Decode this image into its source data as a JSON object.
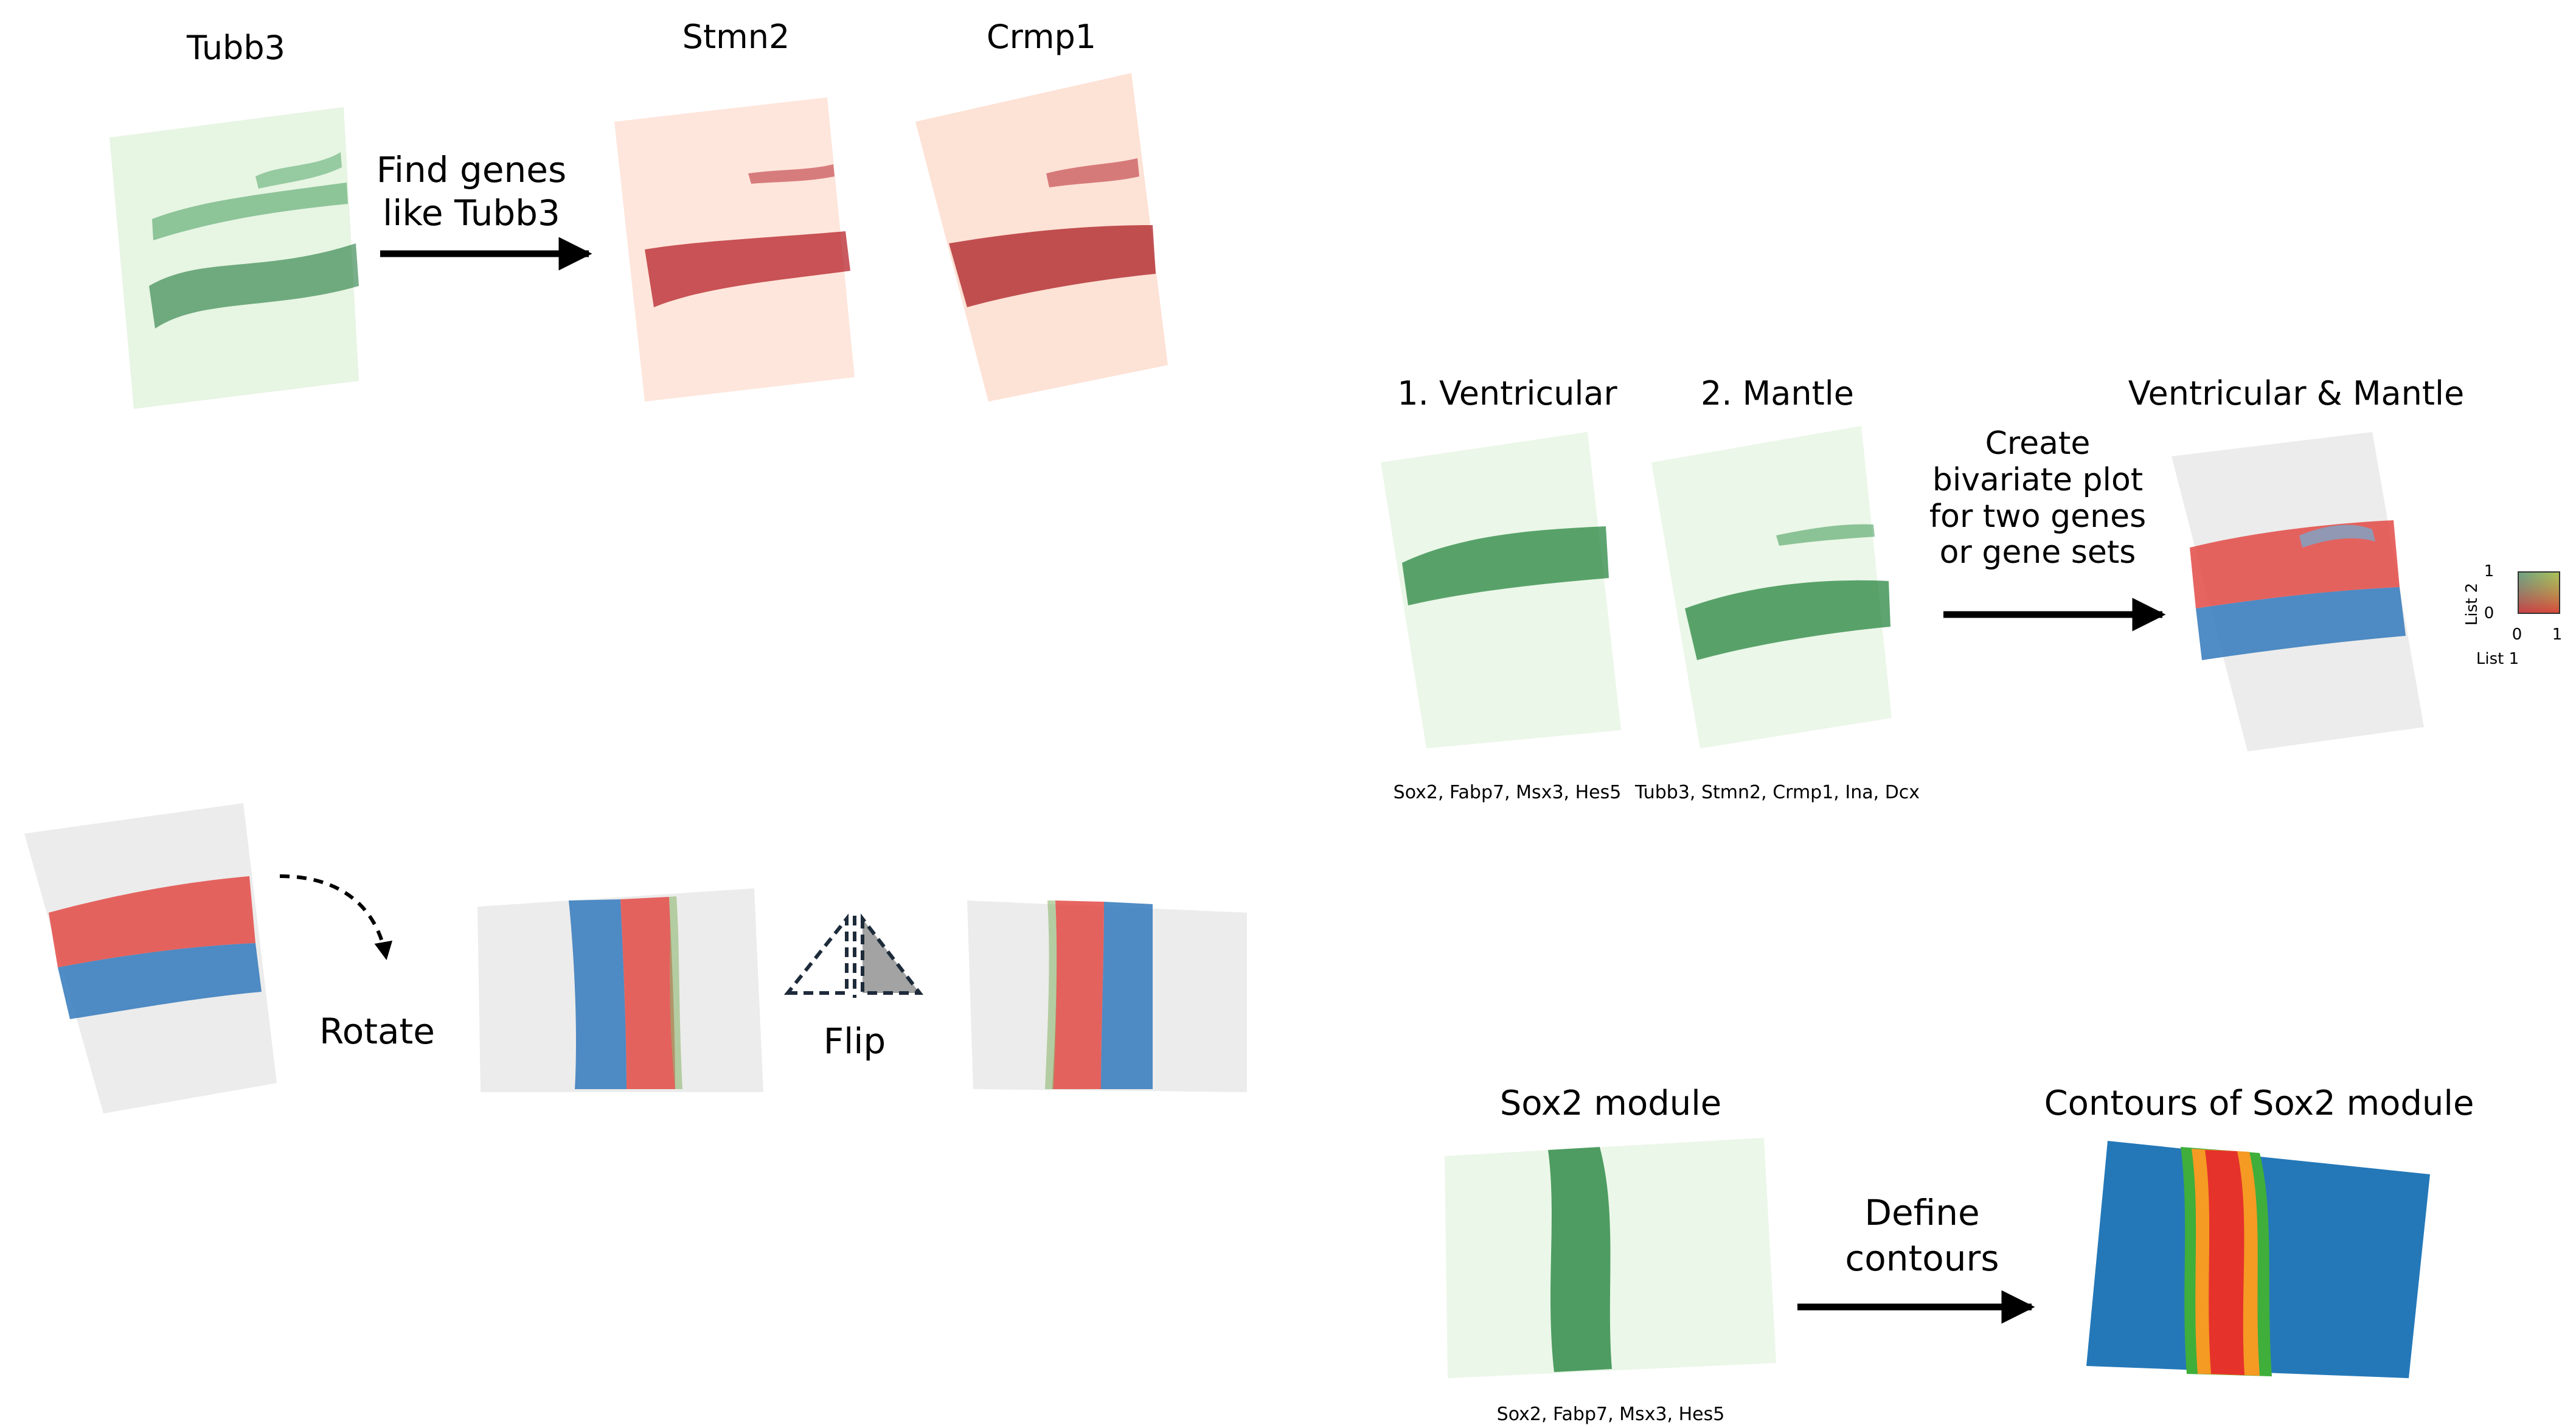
{
  "panel_find_genes": {
    "query_title": "Tubb3",
    "result_titles": [
      "Stmn2",
      "Crmp1"
    ],
    "arrow_label": "Find genes\nlike Tubb3"
  },
  "panel_bivariate": {
    "list1_title": "1. Ventricular",
    "list2_title": "2. Mantle",
    "list1_genes": "Sox2, Fabp7, Msx3, Hes5",
    "list2_genes": "Tubb3, Stmn2, Crmp1, Ina, Dcx",
    "arrow_label": "Create\nbivariate plot\nfor two genes\nor gene sets",
    "result_title": "Ventricular & Mantle",
    "legend": {
      "y_label": "List 2",
      "x_label": "List 1",
      "x_ticks": [
        "0",
        "1"
      ],
      "y_ticks": [
        "0",
        "1"
      ]
    }
  },
  "panel_transform": {
    "rotate_label": "Rotate",
    "flip_label": "Flip"
  },
  "panel_contours": {
    "module_title": "Sox2 module",
    "module_genes": "Sox2, Fabp7, Msx3, Hes5",
    "arrow_label": "Define\ncontours",
    "result_title": "Contours of Sox2 module"
  },
  "colors": {
    "green_dark": "#0b6b2a",
    "green_light": "#d9f2d6",
    "red_dark": "#a50f15",
    "red_light": "#fde0d2",
    "blue": "#2b7bba",
    "gray_dot": "#d4d4d4",
    "contour_red": "#e5322b",
    "contour_orange": "#f59a23",
    "contour_green": "#3fae3a"
  }
}
